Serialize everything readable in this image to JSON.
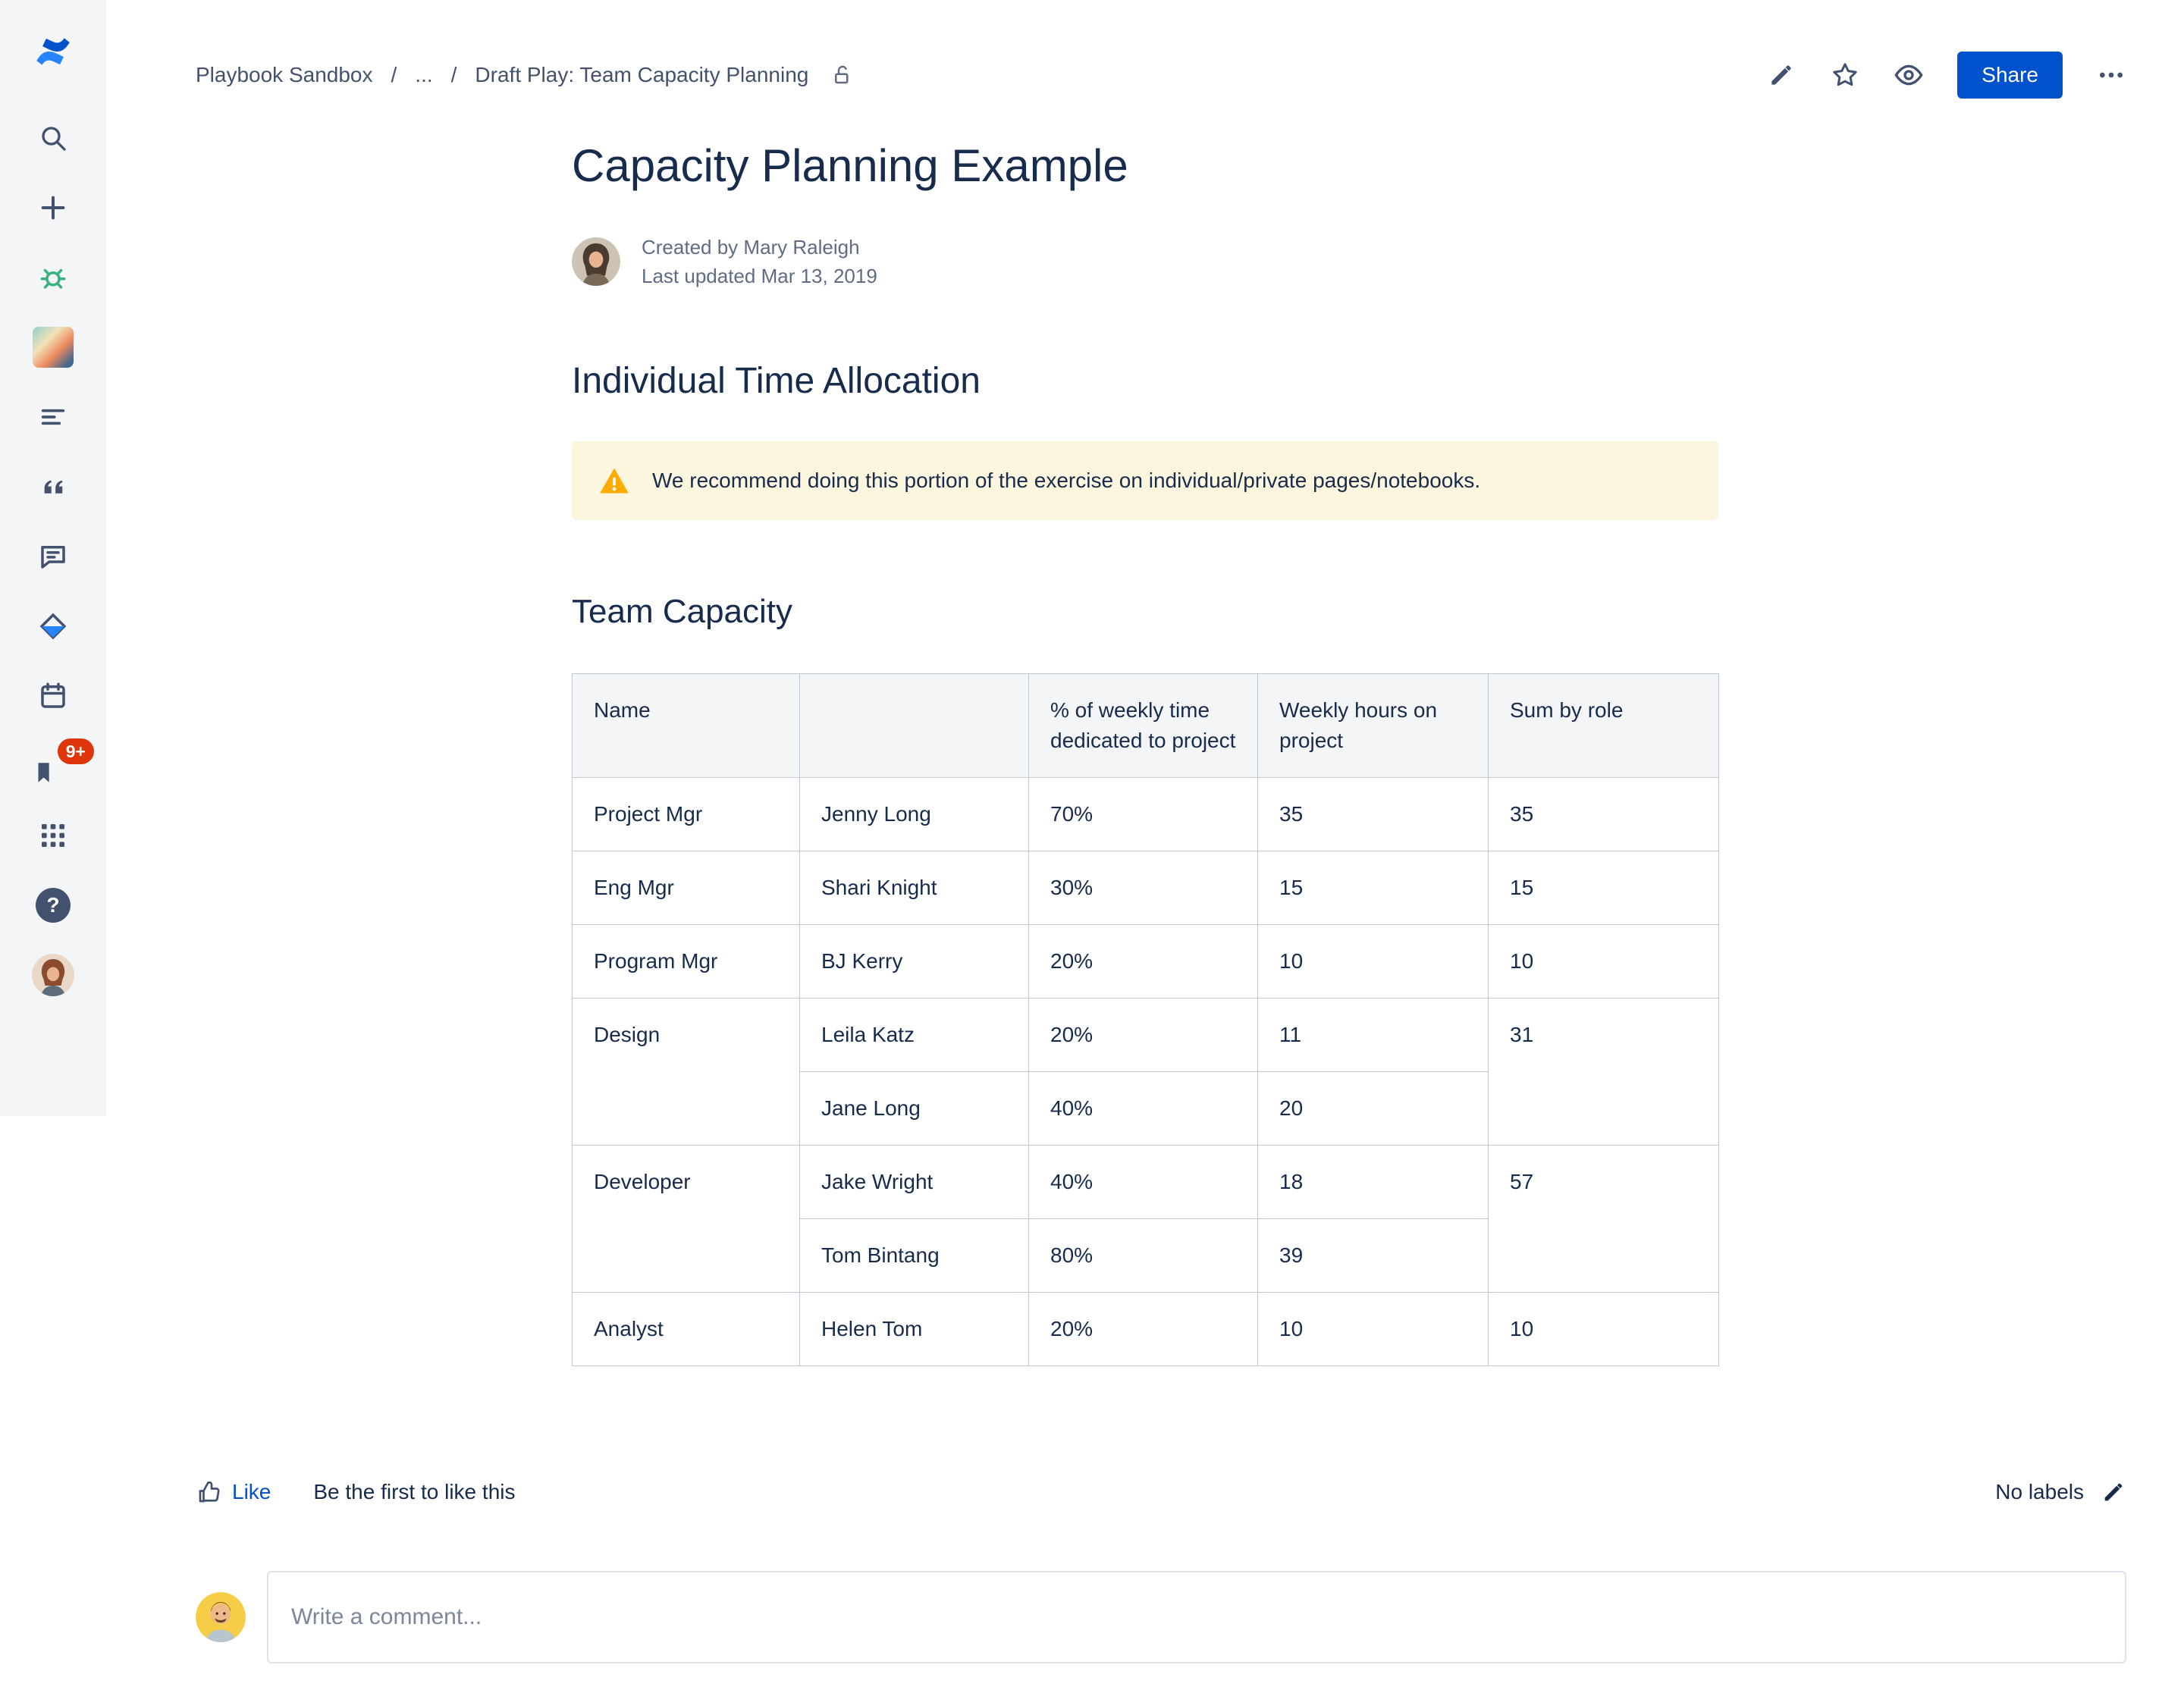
{
  "colors": {
    "brand": "#0052CC",
    "warning_bg": "#FCF6DE",
    "warning_icon": "#FFAB00",
    "table_header_bg": "#F4F5F7",
    "badge_red": "#DE350B"
  },
  "glyphs": {
    "help": "?"
  },
  "sidebar": {
    "icons": [
      "confluence-logo",
      "search-icon",
      "create-plus-icon",
      "green-bug-icon",
      "space-avatar",
      "align-left-icon",
      "quote-icon",
      "comment-bubble-icon",
      "diamond-icon",
      "calendar-icon",
      "flag-notifications-icon",
      "app-grid-icon",
      "help-icon",
      "user-avatar"
    ],
    "notification_badge": "9+"
  },
  "breadcrumb": {
    "items": [
      "Playbook Sandbox",
      "...",
      "Draft Play: Team Capacity Planning"
    ],
    "separator": "/"
  },
  "toolbar": {
    "share_label": "Share"
  },
  "page": {
    "title": "Capacity Planning Example",
    "created_by": "Created by Mary Raleigh",
    "last_updated": "Last updated Mar 13, 2019"
  },
  "sections": {
    "individual_heading": "Individual Time Allocation",
    "warning_text": "We recommend doing this portion of the exercise on individual/private pages/notebooks.",
    "team_heading": "Team Capacity"
  },
  "table": {
    "headers": [
      "Name",
      "",
      "% of weekly time dedicated to project",
      "Weekly hours on project",
      "Sum by role"
    ],
    "rows": [
      {
        "role": "Project Mgr",
        "role_span": 1,
        "name": "Jenny Long",
        "pct": "70%",
        "hours": "35",
        "sum": "35",
        "sum_span": 1
      },
      {
        "role": "Eng Mgr",
        "role_span": 1,
        "name": "Shari Knight",
        "pct": "30%",
        "hours": "15",
        "sum": "15",
        "sum_span": 1
      },
      {
        "role": "Program Mgr",
        "role_span": 1,
        "name": "BJ Kerry",
        "pct": "20%",
        "hours": "10",
        "sum": "10",
        "sum_span": 1
      },
      {
        "role": "Design",
        "role_span": 2,
        "name": "Leila Katz",
        "pct": "20%",
        "hours": "11",
        "sum": "31",
        "sum_span": 2
      },
      {
        "name": "Jane Long",
        "pct": "40%",
        "hours": "20"
      },
      {
        "role": "Developer",
        "role_span": 2,
        "name": "Jake Wright",
        "pct": "40%",
        "hours": "18",
        "sum": "57",
        "sum_span": 2
      },
      {
        "name": "Tom Bintang",
        "pct": "80%",
        "hours": "39"
      },
      {
        "role": "Analyst",
        "role_span": 1,
        "name": "Helen Tom",
        "pct": "20%",
        "hours": "10",
        "sum": "10",
        "sum_span": 1
      }
    ]
  },
  "footer": {
    "like_label": "Like",
    "like_hint": "Be the first to like this",
    "labels_text": "No labels"
  },
  "comment": {
    "placeholder": "Write a comment..."
  }
}
